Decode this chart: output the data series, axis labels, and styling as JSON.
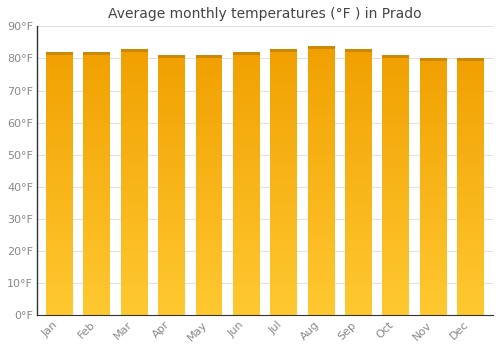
{
  "title": "Average monthly temperatures (°F ) in Prado",
  "months": [
    "Jan",
    "Feb",
    "Mar",
    "Apr",
    "May",
    "Jun",
    "Jul",
    "Aug",
    "Sep",
    "Oct",
    "Nov",
    "Dec"
  ],
  "values": [
    82,
    82,
    83,
    81,
    81,
    82,
    83,
    84,
    83,
    81,
    80,
    80
  ],
  "ylim": [
    0,
    90
  ],
  "yticks": [
    0,
    10,
    20,
    30,
    40,
    50,
    60,
    70,
    80,
    90
  ],
  "ytick_labels": [
    "0°F",
    "10°F",
    "20°F",
    "30°F",
    "40°F",
    "50°F",
    "60°F",
    "70°F",
    "80°F",
    "90°F"
  ],
  "bar_color_bottom": "#FFC020",
  "bar_color_top": "#F0A000",
  "bar_top_stripe": "#CC8800",
  "bar_edge_color": "#FFFFFF",
  "background_color": "#FFFFFF",
  "plot_bg_color": "#FFFFFF",
  "grid_color": "#E0E0E0",
  "title_fontsize": 10,
  "tick_fontsize": 8,
  "title_color": "#444444",
  "tick_color": "#888888",
  "left_spine_color": "#333333"
}
